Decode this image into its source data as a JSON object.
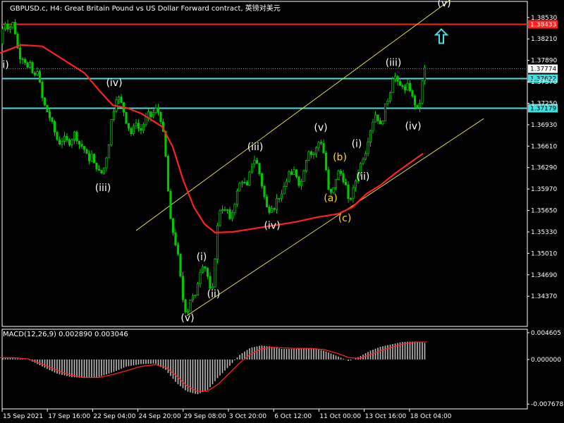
{
  "header": {
    "title": "GBPUSD.c, H4:  Great Britain Pound vs US Dollar Forward contract, 英镑对美元"
  },
  "macd_header": {
    "label": "MACD(12,26,9) 0.002890 0.003046"
  },
  "colors": {
    "background": "#000000",
    "candle": "#00c800",
    "ma": "#ff2020",
    "resistance_line": "#ff2020",
    "support_line": "#40e0e0",
    "channel": "#d8d840",
    "wave_white": "#ffffff",
    "wave_yellow": "#ffd700",
    "macd_hist": "#bdbdbd",
    "macd_signal": "#ff2020",
    "arrow": "#40e0e0"
  },
  "chart_data": {
    "type": "candlestick",
    "symbol": "GBPUSD.c",
    "timeframe": "H4",
    "ylim": [
      1.3392,
      1.3877
    ],
    "price_ticks": [
      "1.38530",
      "1.38210",
      "1.37890",
      "1.37570",
      "1.37250",
      "1.36930",
      "1.36610",
      "1.36290",
      "1.35970",
      "1.35650",
      "1.35330",
      "1.35010",
      "1.34690",
      "1.34370"
    ],
    "time_ticks": [
      "15 Sep 2021",
      "17 Sep 16:00",
      "22 Sep 04:00",
      "24 Sep 20:00",
      "29 Sep 08:00",
      "3 Oct 20:00",
      "6 Oct 12:00",
      "11 Oct 00:00",
      "13 Oct 16:00",
      "18 Oct 04:00"
    ],
    "horizontal_lines": [
      {
        "price": 1.38433,
        "label": "1.38433",
        "role": "resistance"
      },
      {
        "price": 1.37622,
        "label": "1.37622",
        "role": "support"
      },
      {
        "price": 1.37179,
        "label": "1.37179",
        "role": "support"
      }
    ],
    "current_price": {
      "price": 1.37774,
      "label": "1.37774"
    },
    "close_path": [
      [
        0,
        1.3814
      ],
      [
        3,
        1.383
      ],
      [
        6,
        1.3848
      ],
      [
        9,
        1.3842
      ],
      [
        12,
        1.3836
      ],
      [
        15,
        1.384
      ],
      [
        18,
        1.3845
      ],
      [
        22,
        1.3828
      ],
      [
        26,
        1.38
      ],
      [
        30,
        1.379
      ],
      [
        34,
        1.3795
      ],
      [
        38,
        1.3775
      ],
      [
        42,
        1.3785
      ],
      [
        46,
        1.377
      ],
      [
        50,
        1.3765
      ],
      [
        54,
        1.3778
      ],
      [
        58,
        1.374
      ],
      [
        62,
        1.3725
      ],
      [
        66,
        1.3715
      ],
      [
        70,
        1.3705
      ],
      [
        74,
        1.3695
      ],
      [
        78,
        1.368
      ],
      [
        82,
        1.3668
      ],
      [
        86,
        1.3664
      ],
      [
        90,
        1.3675
      ],
      [
        94,
        1.367
      ],
      [
        98,
        1.3665
      ],
      [
        102,
        1.3672
      ],
      [
        106,
        1.3682
      ],
      [
        110,
        1.3668
      ],
      [
        114,
        1.3662
      ],
      [
        118,
        1.366
      ],
      [
        122,
        1.365
      ],
      [
        126,
        1.364
      ],
      [
        130,
        1.3648
      ],
      [
        134,
        1.3632
      ],
      [
        138,
        1.3628
      ],
      [
        142,
        1.362
      ],
      [
        146,
        1.3622
      ],
      [
        150,
        1.364
      ],
      [
        154,
        1.366
      ],
      [
        158,
        1.37
      ],
      [
        162,
        1.3718
      ],
      [
        166,
        1.3738
      ],
      [
        170,
        1.373
      ],
      [
        174,
        1.372
      ],
      [
        178,
        1.37
      ],
      [
        182,
        1.369
      ],
      [
        186,
        1.368
      ],
      [
        190,
        1.369
      ],
      [
        194,
        1.37
      ],
      [
        198,
        1.368
      ],
      [
        202,
        1.369
      ],
      [
        206,
        1.37
      ],
      [
        210,
        1.371
      ],
      [
        214,
        1.3705
      ],
      [
        218,
        1.3712
      ],
      [
        222,
        1.3718
      ],
      [
        226,
        1.3708
      ],
      [
        230,
        1.3692
      ],
      [
        234,
        1.366
      ],
      [
        238,
        1.36
      ],
      [
        242,
        1.355
      ],
      [
        246,
        1.353
      ],
      [
        250,
        1.351
      ],
      [
        254,
        1.349
      ],
      [
        258,
        1.344
      ],
      [
        262,
        1.342
      ],
      [
        265,
        1.3408
      ],
      [
        268,
        1.3425
      ],
      [
        272,
        1.344
      ],
      [
        276,
        1.343
      ],
      [
        280,
        1.3455
      ],
      [
        284,
        1.3475
      ],
      [
        288,
        1.3485
      ],
      [
        292,
        1.3478
      ],
      [
        296,
        1.346
      ],
      [
        299,
        1.344
      ],
      [
        302,
        1.345
      ],
      [
        306,
        1.351
      ],
      [
        310,
        1.356
      ],
      [
        314,
        1.3572
      ],
      [
        318,
        1.3562
      ],
      [
        322,
        1.3568
      ],
      [
        326,
        1.355
      ],
      [
        330,
        1.3565
      ],
      [
        334,
        1.358
      ],
      [
        338,
        1.36
      ],
      [
        342,
        1.361
      ],
      [
        346,
        1.3608
      ],
      [
        350,
        1.3598
      ],
      [
        354,
        1.362
      ],
      [
        358,
        1.3638
      ],
      [
        362,
        1.3642
      ],
      [
        366,
        1.363
      ],
      [
        370,
        1.361
      ],
      [
        374,
        1.359
      ],
      [
        378,
        1.357
      ],
      [
        382,
        1.3565
      ],
      [
        386,
        1.3572
      ],
      [
        390,
        1.3568
      ],
      [
        394,
        1.359
      ],
      [
        398,
        1.358
      ],
      [
        402,
        1.3598
      ],
      [
        406,
        1.3608
      ],
      [
        410,
        1.3622
      ],
      [
        414,
        1.3615
      ],
      [
        418,
        1.3628
      ],
      [
        422,
        1.361
      ],
      [
        426,
        1.36
      ],
      [
        430,
        1.3622
      ],
      [
        434,
        1.364
      ],
      [
        438,
        1.3655
      ],
      [
        442,
        1.3648
      ],
      [
        446,
        1.365
      ],
      [
        450,
        1.3662
      ],
      [
        454,
        1.3672
      ],
      [
        458,
        1.3658
      ],
      [
        462,
        1.363
      ],
      [
        466,
        1.3595
      ],
      [
        470,
        1.359
      ],
      [
        474,
        1.36
      ],
      [
        478,
        1.362
      ],
      [
        482,
        1.3625
      ],
      [
        486,
        1.3612
      ],
      [
        490,
        1.3605
      ],
      [
        494,
        1.358
      ],
      [
        498,
        1.3585
      ],
      [
        502,
        1.36
      ],
      [
        506,
        1.3615
      ],
      [
        510,
        1.363
      ],
      [
        514,
        1.3642
      ],
      [
        518,
        1.365
      ],
      [
        522,
        1.367
      ],
      [
        526,
        1.3688
      ],
      [
        530,
        1.3702
      ],
      [
        534,
        1.3712
      ],
      [
        538,
        1.369
      ],
      [
        542,
        1.3695
      ],
      [
        546,
        1.372
      ],
      [
        550,
        1.373
      ],
      [
        554,
        1.3745
      ],
      [
        558,
        1.377
      ],
      [
        562,
        1.3762
      ],
      [
        566,
        1.3748
      ],
      [
        570,
        1.3755
      ],
      [
        574,
        1.3742
      ],
      [
        578,
        1.3752
      ],
      [
        582,
        1.3745
      ],
      [
        586,
        1.373
      ],
      [
        590,
        1.372
      ],
      [
        594,
        1.3712
      ],
      [
        598,
        1.375
      ],
      [
        602,
        1.3777
      ],
      [
        605,
        1.3777
      ]
    ],
    "ma_path": [
      [
        0,
        1.38
      ],
      [
        30,
        1.3812
      ],
      [
        60,
        1.381
      ],
      [
        90,
        1.379
      ],
      [
        120,
        1.377
      ],
      [
        140,
        1.3745
      ],
      [
        160,
        1.3722
      ],
      [
        180,
        1.3718
      ],
      [
        200,
        1.371
      ],
      [
        230,
        1.369
      ],
      [
        245,
        1.366
      ],
      [
        260,
        1.361
      ],
      [
        275,
        1.357
      ],
      [
        290,
        1.3545
      ],
      [
        305,
        1.3532
      ],
      [
        330,
        1.3533
      ],
      [
        360,
        1.3538
      ],
      [
        390,
        1.3543
      ],
      [
        420,
        1.3548
      ],
      [
        450,
        1.3555
      ],
      [
        480,
        1.356
      ],
      [
        500,
        1.357
      ],
      [
        520,
        1.359
      ],
      [
        540,
        1.3603
      ],
      [
        560,
        1.362
      ],
      [
        580,
        1.3635
      ],
      [
        600,
        1.365
      ]
    ],
    "channel_lines": [
      {
        "from": [
          193,
          1.3535
        ],
        "to": [
          650,
          1.3888
        ]
      },
      {
        "from": [
          265,
          1.3408
        ],
        "to": [
          686,
          1.3702
        ]
      }
    ],
    "wave_labels": [
      {
        "text": "i)",
        "x": 8,
        "y": 1.3782,
        "color": "white"
      },
      {
        "text": "(iv)",
        "x": 162,
        "y": 1.3755,
        "color": "white"
      },
      {
        "text": "(iii)",
        "x": 146,
        "y": 1.3598,
        "color": "white"
      },
      {
        "text": "(v)",
        "x": 266,
        "y": 1.3404,
        "color": "white"
      },
      {
        "text": "(i)",
        "x": 286,
        "y": 1.3495,
        "color": "white"
      },
      {
        "text": "(ii)",
        "x": 303,
        "y": 1.344,
        "color": "white"
      },
      {
        "text": "(iii)",
        "x": 362,
        "y": 1.3659,
        "color": "white"
      },
      {
        "text": "(iv)",
        "x": 386,
        "y": 1.3542,
        "color": "white"
      },
      {
        "text": "(v)",
        "x": 455,
        "y": 1.3688,
        "color": "white"
      },
      {
        "text": "(b)",
        "x": 482,
        "y": 1.3644,
        "color": "yellow"
      },
      {
        "text": "(a)",
        "x": 469,
        "y": 1.3583,
        "color": "yellow"
      },
      {
        "text": "(c)",
        "x": 489,
        "y": 1.3553,
        "color": "yellow"
      },
      {
        "text": "(i)",
        "x": 506,
        "y": 1.3664,
        "color": "white"
      },
      {
        "text": "(ii)",
        "x": 515,
        "y": 1.3615,
        "color": "white"
      },
      {
        "text": "(iii)",
        "x": 558,
        "y": 1.3785,
        "color": "white"
      },
      {
        "text": "(iv)",
        "x": 586,
        "y": 1.369,
        "color": "white"
      },
      {
        "text": "(v)",
        "x": 630,
        "y": 1.3874,
        "color": "white"
      }
    ],
    "arrow": {
      "direction": "up",
      "x": 626,
      "y": 1.3825
    },
    "macd": {
      "ylim": [
        -0.0085,
        0.0052
      ],
      "ticks": [
        "0.004605",
        "0.000000",
        "-0.007678"
      ],
      "hist": [
        [
          0,
          0.0003
        ],
        [
          20,
          0.0002
        ],
        [
          40,
          0.0
        ],
        [
          60,
          -0.0012
        ],
        [
          80,
          -0.0024
        ],
        [
          100,
          -0.003
        ],
        [
          120,
          -0.0032
        ],
        [
          140,
          -0.003
        ],
        [
          160,
          -0.0022
        ],
        [
          180,
          -0.0012
        ],
        [
          200,
          -0.0008
        ],
        [
          220,
          -0.0007
        ],
        [
          235,
          -0.0018
        ],
        [
          250,
          -0.004
        ],
        [
          265,
          -0.0055
        ],
        [
          280,
          -0.006
        ],
        [
          295,
          -0.0052
        ],
        [
          310,
          -0.003
        ],
        [
          325,
          -0.0012
        ],
        [
          340,
          0.0008
        ],
        [
          355,
          0.002
        ],
        [
          370,
          0.0024
        ],
        [
          385,
          0.0022
        ],
        [
          400,
          0.0018
        ],
        [
          420,
          0.0018
        ],
        [
          440,
          0.002
        ],
        [
          460,
          0.0015
        ],
        [
          480,
          0.0005
        ],
        [
          495,
          -0.0003
        ],
        [
          510,
          0.0005
        ],
        [
          525,
          0.0015
        ],
        [
          540,
          0.0022
        ],
        [
          555,
          0.0026
        ],
        [
          570,
          0.003
        ],
        [
          590,
          0.0031
        ],
        [
          605,
          0.0028
        ]
      ],
      "signal": [
        [
          0,
          0.0003
        ],
        [
          20,
          0.0003
        ],
        [
          40,
          0.0001
        ],
        [
          60,
          -0.0008
        ],
        [
          80,
          -0.0018
        ],
        [
          100,
          -0.0027
        ],
        [
          120,
          -0.0031
        ],
        [
          140,
          -0.0031
        ],
        [
          160,
          -0.0026
        ],
        [
          180,
          -0.0019
        ],
        [
          200,
          -0.0012
        ],
        [
          220,
          -0.0009
        ],
        [
          235,
          -0.0013
        ],
        [
          250,
          -0.0028
        ],
        [
          265,
          -0.0045
        ],
        [
          280,
          -0.0055
        ],
        [
          295,
          -0.0054
        ],
        [
          310,
          -0.0042
        ],
        [
          325,
          -0.0024
        ],
        [
          340,
          -0.0006
        ],
        [
          355,
          0.0009
        ],
        [
          370,
          0.0018
        ],
        [
          385,
          0.0021
        ],
        [
          400,
          0.002
        ],
        [
          420,
          0.0019
        ],
        [
          440,
          0.0019
        ],
        [
          460,
          0.0017
        ],
        [
          480,
          0.001
        ],
        [
          495,
          0.0003
        ],
        [
          510,
          0.0002
        ],
        [
          525,
          0.0008
        ],
        [
          540,
          0.0015
        ],
        [
          555,
          0.0021
        ],
        [
          570,
          0.0026
        ],
        [
          590,
          0.003
        ],
        [
          605,
          0.003
        ]
      ]
    }
  }
}
